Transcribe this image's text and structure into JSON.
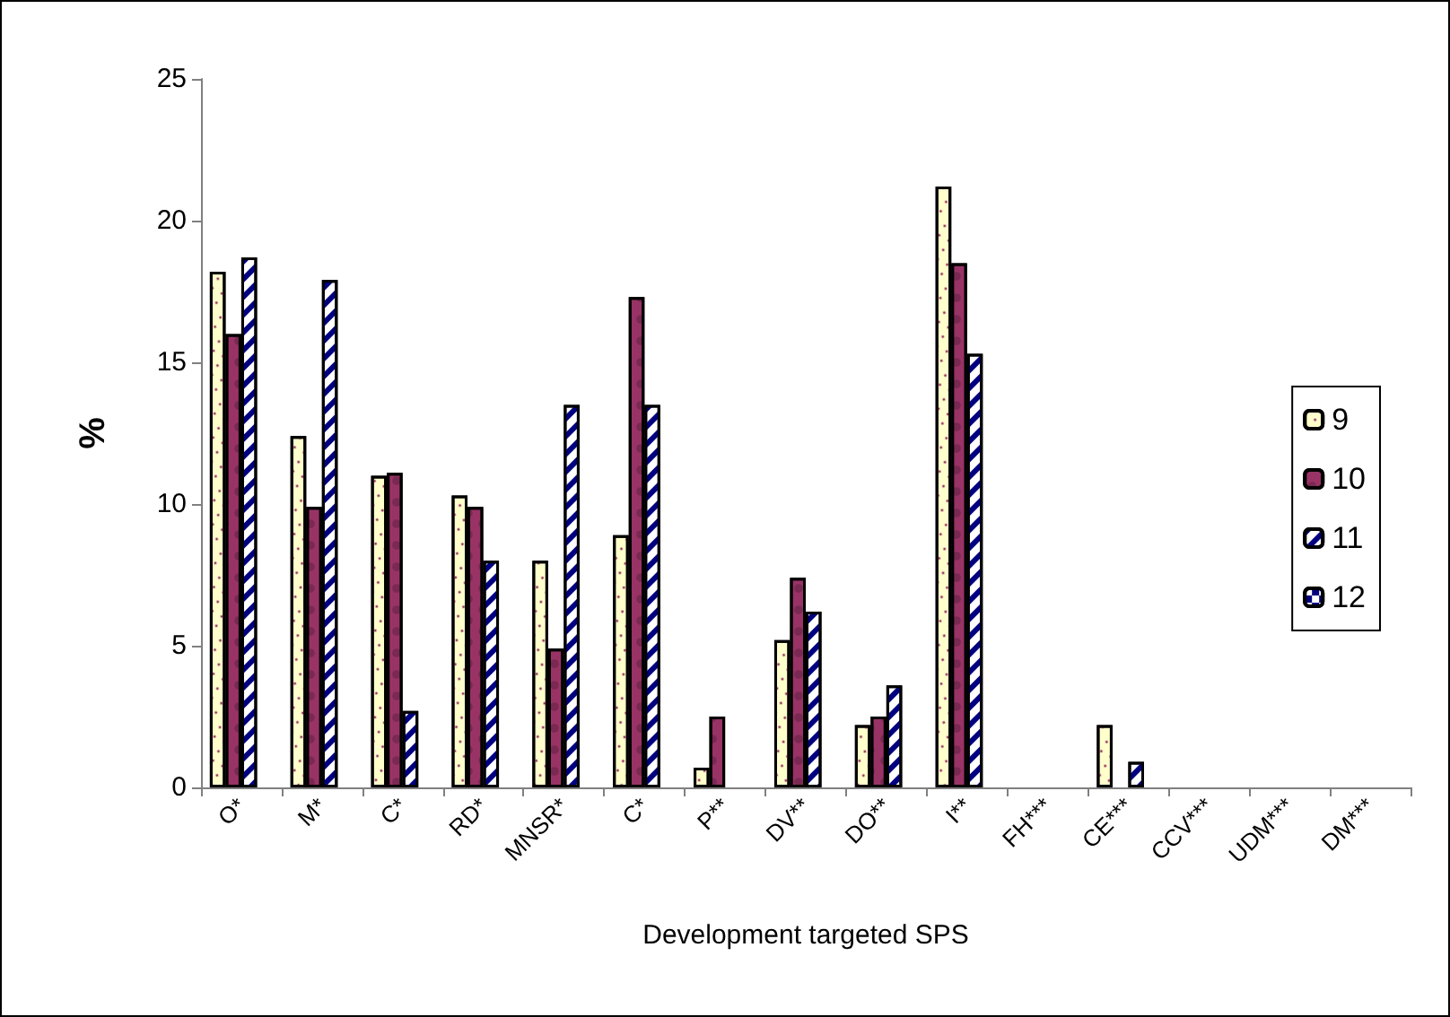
{
  "chart_data": {
    "type": "bar",
    "xlabel": "Development targeted SPS",
    "ylabel": "%",
    "categories": [
      "O*",
      "M*",
      "C*",
      "RD*",
      "MNSR*",
      "C*",
      "P**",
      "DV**",
      "DO**",
      "I**",
      "FH***",
      "CE***",
      "CCV***",
      "UDM***",
      "DM***"
    ],
    "series": [
      {
        "name": "9",
        "color": "#ffffcc",
        "values": [
          18.2,
          12.4,
          11.0,
          10.3,
          8.0,
          8.9,
          0.7,
          5.2,
          2.2,
          21.2,
          0,
          2.2,
          0,
          0,
          0
        ]
      },
      {
        "name": "10",
        "color": "#993366",
        "values": [
          16.0,
          9.9,
          11.1,
          9.9,
          4.9,
          17.3,
          2.5,
          7.4,
          2.5,
          18.5,
          0,
          0,
          0,
          0,
          0
        ]
      },
      {
        "name": "11",
        "color": "#ffffff",
        "values": [
          18.7,
          17.9,
          2.7,
          8.0,
          13.5,
          13.5,
          0,
          6.2,
          3.6,
          15.3,
          0,
          0.9,
          0,
          0,
          0
        ]
      },
      {
        "name": "12",
        "color": "#ffffff",
        "values": [
          0,
          0,
          0,
          0,
          0,
          0,
          0,
          0,
          0,
          0,
          0,
          0,
          0,
          0,
          0
        ]
      }
    ],
    "ylim": [
      0,
      25
    ],
    "yticks": [
      0,
      5,
      10,
      15,
      20,
      25
    ],
    "grid": false,
    "legend": "right"
  }
}
